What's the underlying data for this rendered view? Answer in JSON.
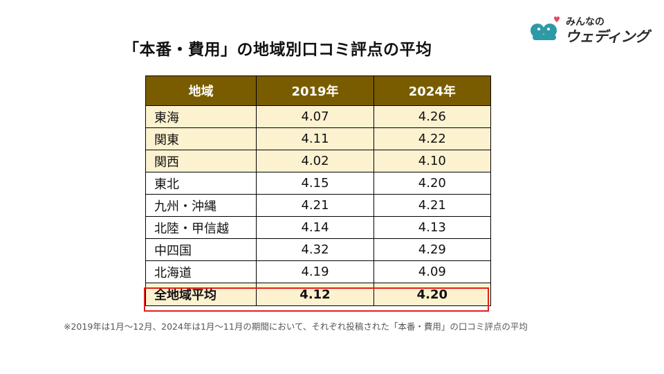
{
  "title": "「本番・費用」の地域別口コミ評点の平均",
  "logo": {
    "text_small": "みんなの",
    "text_big": "ウェディング",
    "colors": {
      "teal": "#2e9aa6",
      "heart": "#e24a60"
    }
  },
  "table": {
    "headers": [
      "地域",
      "2019年",
      "2024年"
    ],
    "rows": [
      [
        "東海",
        "4.07",
        "4.26"
      ],
      [
        "関東",
        "4.11",
        "4.22"
      ],
      [
        "関西",
        "4.02",
        "4.10"
      ],
      [
        "東北",
        "4.15",
        "4.20"
      ],
      [
        "九州・沖縄",
        "4.21",
        "4.21"
      ],
      [
        "北陸・甲信越",
        "4.14",
        "4.13"
      ],
      [
        "中四国",
        "4.32",
        "4.29"
      ],
      [
        "北海道",
        "4.19",
        "4.09"
      ]
    ],
    "total": [
      "全地域平均",
      "4.12",
      "4.20"
    ],
    "colors": {
      "header_bg": "#7a5c00",
      "highlight_bg": "#fdf2d0",
      "total_border": "#e0201c"
    }
  },
  "footnote": "※2019年は1月〜12月、2024年は1月〜11月の期間において、それぞれ投稿された「本番・費用」の口コミ評点の平均"
}
